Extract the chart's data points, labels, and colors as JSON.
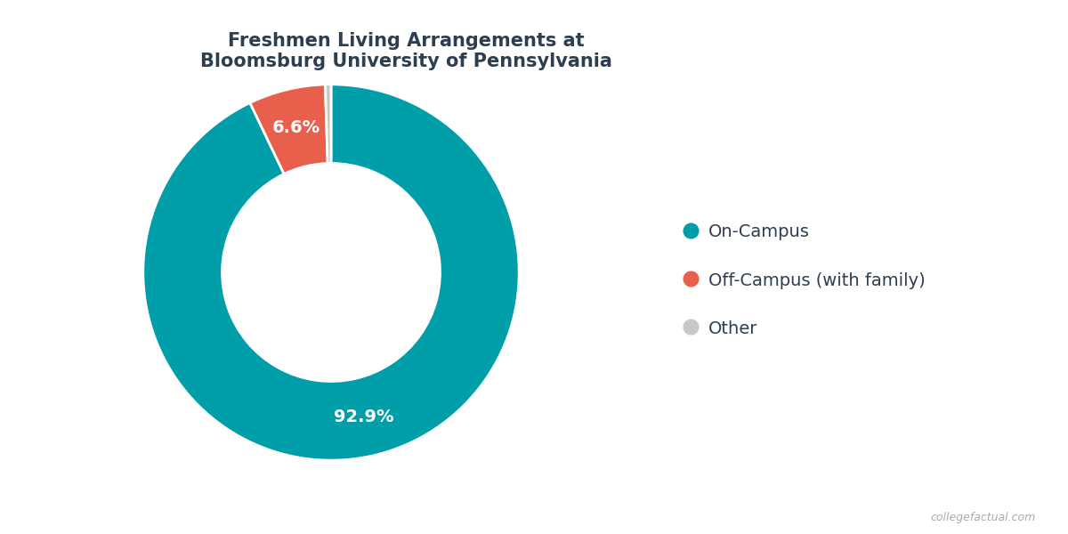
{
  "title": "Freshmen Living Arrangements at\nBloomsburg University of Pennsylvania",
  "slices": [
    92.9,
    6.6,
    0.5
  ],
  "labels": [
    "On-Campus",
    "Off-Campus (with family)",
    "Other"
  ],
  "colors": [
    "#009ea8",
    "#e8604c",
    "#c8c8c8"
  ],
  "autopct_labels": [
    "92.9%",
    "6.6%",
    ""
  ],
  "donut_width": 0.42,
  "legend_labels": [
    "On-Campus",
    "Off-Campus (with family)",
    "Other"
  ],
  "title_fontsize": 15,
  "label_fontsize": 14,
  "legend_fontsize": 14,
  "watermark": "collegefactual.com",
  "background_color": "#ffffff",
  "title_color": "#2d3e50",
  "text_color": "#2d3e50"
}
